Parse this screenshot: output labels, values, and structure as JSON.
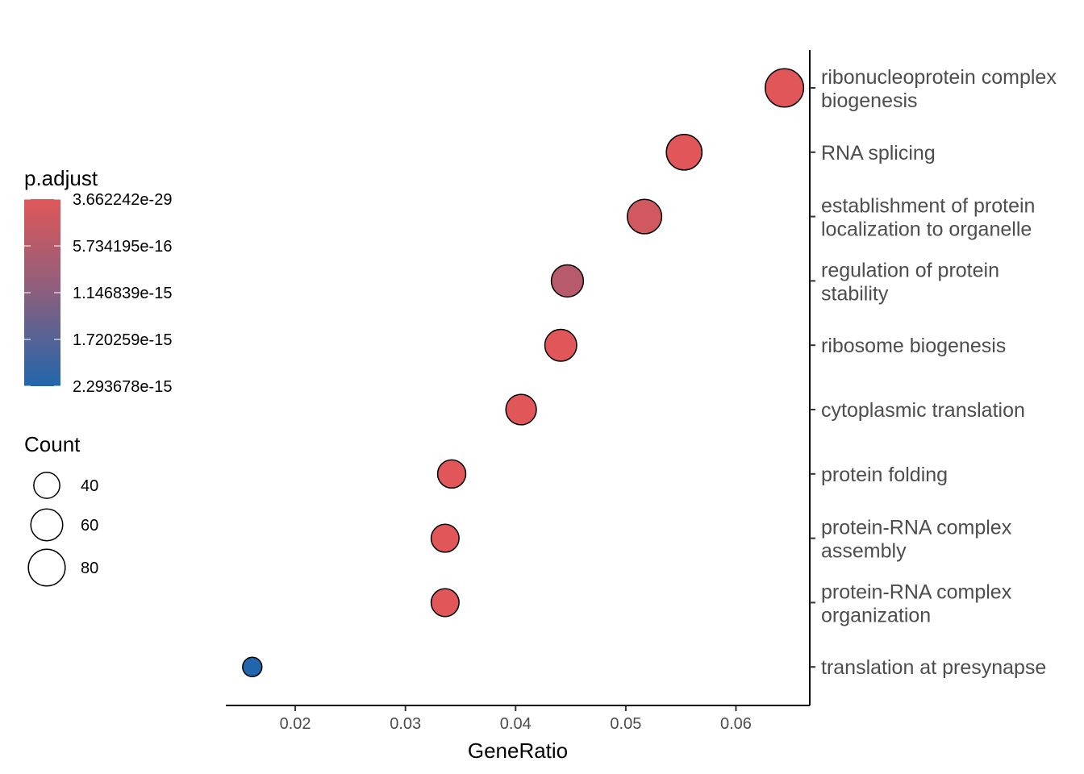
{
  "chart_data": {
    "type": "scatter",
    "xlabel": "GeneRatio",
    "ylabel": "",
    "xlim": [
      0.0137,
      0.0667
    ],
    "x_ticks": [
      "0.02",
      "0.03",
      "0.04",
      "0.05",
      "0.06"
    ],
    "y_axis_position": "right",
    "grid": false,
    "categories": [
      [
        "ribonucleoprotein complex",
        "biogenesis"
      ],
      [
        "RNA splicing"
      ],
      [
        "establishment of protein",
        "localization to organelle"
      ],
      [
        "regulation of protein",
        "stability"
      ],
      [
        "ribosome biogenesis"
      ],
      [
        "cytoplasmic translation"
      ],
      [
        "protein folding"
      ],
      [
        "protein-RNA complex",
        "assembly"
      ],
      [
        "protein-RNA complex",
        "organization"
      ],
      [
        "translation at presynapse"
      ]
    ],
    "points": [
      {
        "x": 0.0644,
        "count": 87,
        "p_adjust_frac": 0.0
      },
      {
        "x": 0.0553,
        "count": 75,
        "p_adjust_frac": 0.0
      },
      {
        "x": 0.0517,
        "count": 70,
        "p_adjust_frac": 0.08
      },
      {
        "x": 0.0447,
        "count": 61,
        "p_adjust_frac": 0.22
      },
      {
        "x": 0.0441,
        "count": 60,
        "p_adjust_frac": 0.0
      },
      {
        "x": 0.0405,
        "count": 55,
        "p_adjust_frac": 0.0
      },
      {
        "x": 0.0342,
        "count": 47,
        "p_adjust_frac": 0.0
      },
      {
        "x": 0.0336,
        "count": 46,
        "p_adjust_frac": 0.0
      },
      {
        "x": 0.0336,
        "count": 46,
        "p_adjust_frac": 0.0
      },
      {
        "x": 0.0161,
        "count": 22,
        "p_adjust_frac": 1.0
      }
    ],
    "color_legend": {
      "title": "p.adjust",
      "labels": [
        "3.662242e-29",
        "5.734195e-16",
        "1.146839e-15",
        "1.720259e-15",
        "2.293678e-15"
      ],
      "low_color": "#e15759",
      "high_color": "#2166ac"
    },
    "size_legend": {
      "title": "Count",
      "values": [
        40,
        60,
        80
      ],
      "labels": [
        "40",
        "60",
        "80"
      ]
    },
    "legend_position": "left"
  }
}
